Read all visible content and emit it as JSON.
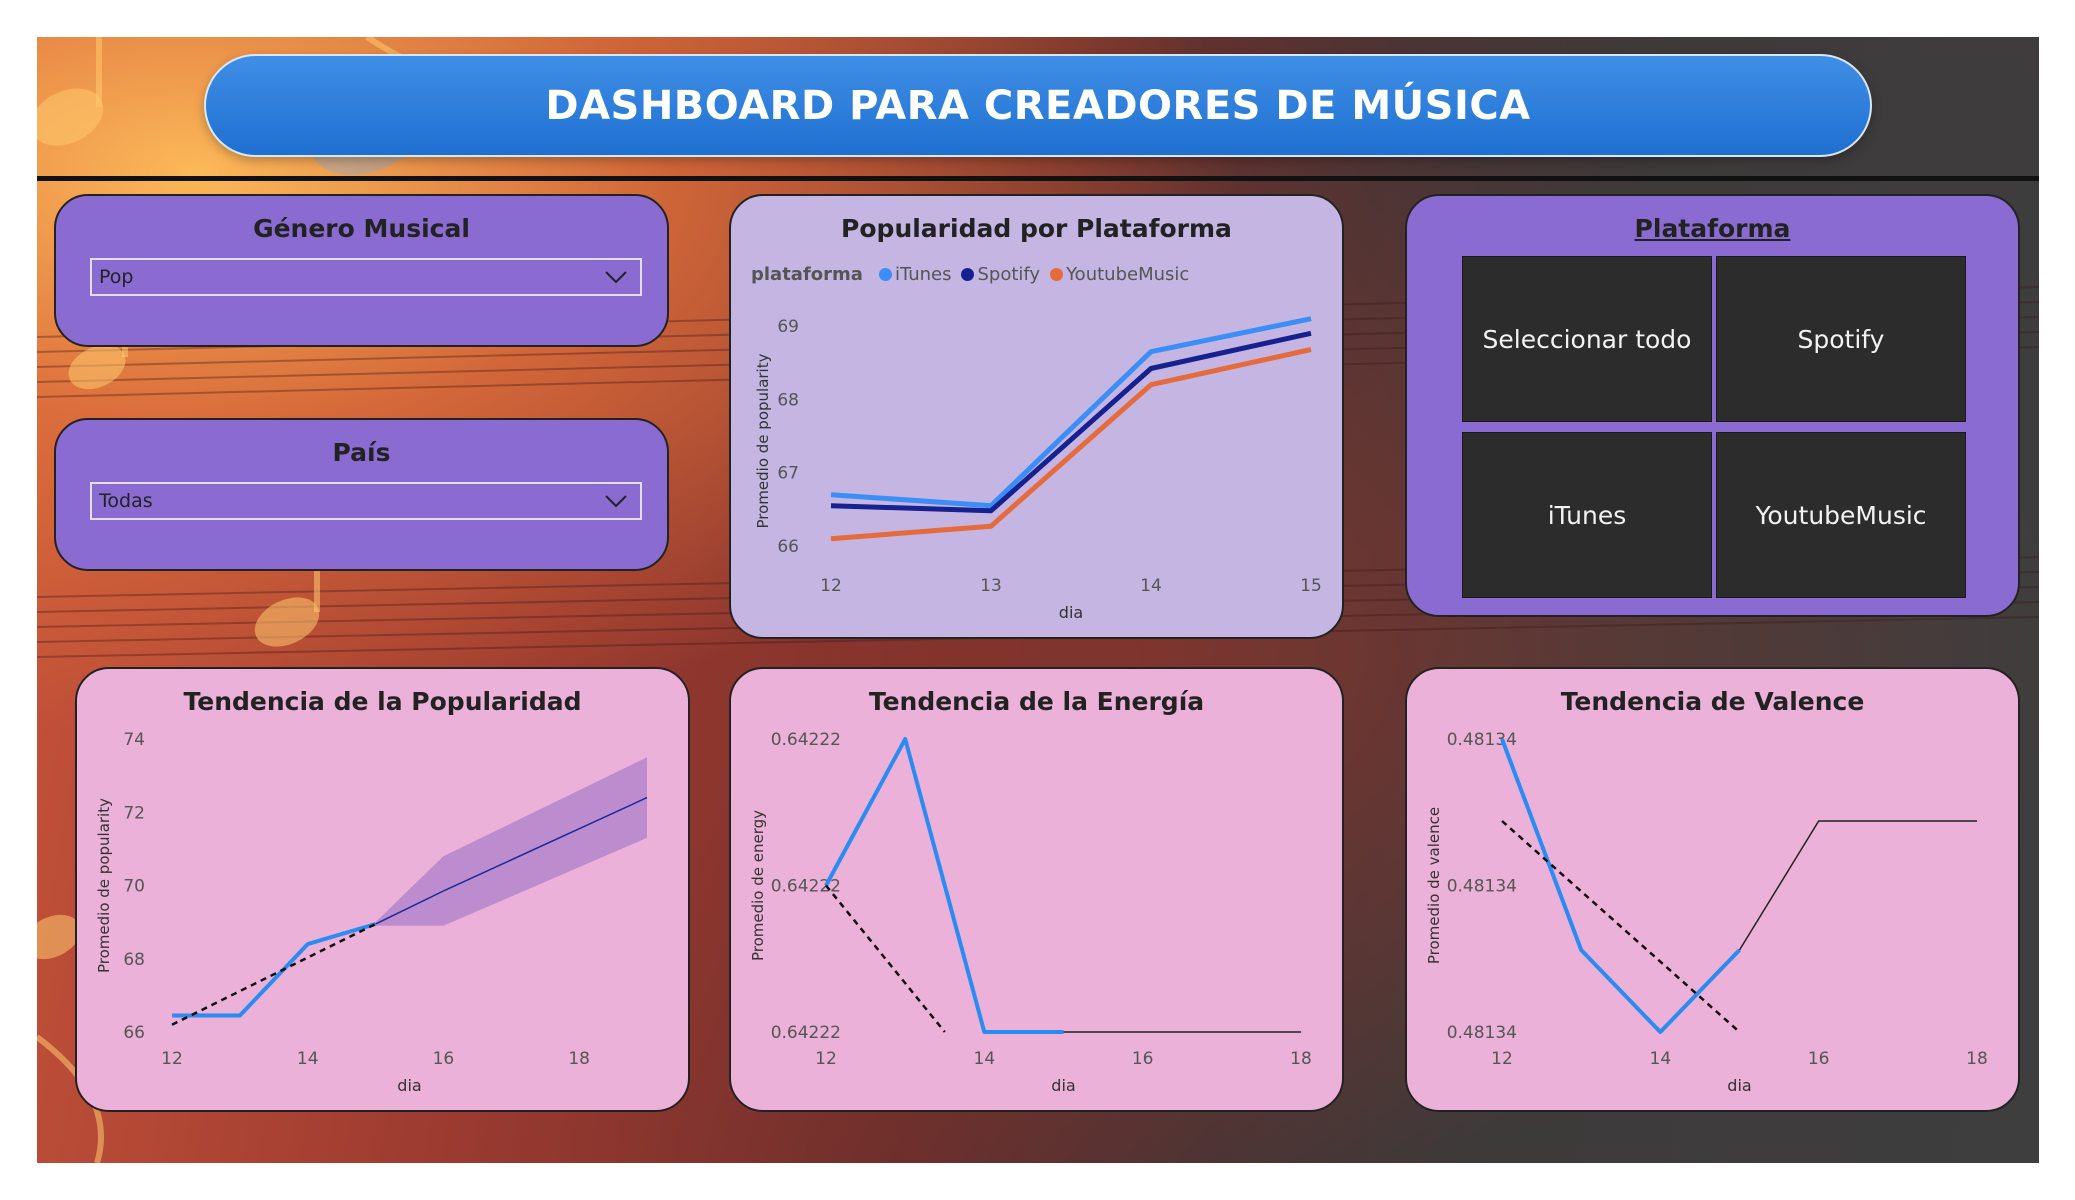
{
  "header": {
    "title": "DASHBOARD PARA CREADORES DE MÚSICA"
  },
  "genre": {
    "title": "Género Musical",
    "value": "Pop"
  },
  "country": {
    "title": "País",
    "value": "Todas"
  },
  "platform": {
    "title": "Plataforma",
    "options": [
      "Seleccionar todo",
      "Spotify",
      "iTunes",
      "YoutubeMusic"
    ]
  },
  "colors": {
    "itunes": "#3a8ef5",
    "spotify": "#16218f",
    "youtube": "#e56a3c",
    "trend": "#2a8cf0"
  },
  "chart_data": [
    {
      "type": "line",
      "title": "Popularidad por Plataforma",
      "legend_title": "plataforma",
      "xlabel": "dia",
      "ylabel": "Promedio de popularity",
      "x": [
        12,
        13,
        14,
        15
      ],
      "xticks": [
        12,
        13,
        14,
        15
      ],
      "yticks": [
        66,
        67,
        68,
        69
      ],
      "ylim": [
        65.75,
        69.25
      ],
      "series": [
        {
          "name": "iTunes",
          "values": [
            66.7,
            66.55,
            68.65,
            69.1
          ]
        },
        {
          "name": "Spotify",
          "values": [
            66.55,
            66.48,
            68.42,
            68.9
          ]
        },
        {
          "name": "YoutubeMusic",
          "values": [
            66.1,
            66.27,
            68.2,
            68.68
          ]
        }
      ]
    },
    {
      "type": "line",
      "title": "Tendencia de la Popularidad",
      "xlabel": "dia",
      "ylabel": "Promedio de popularity",
      "xticks": [
        12,
        14,
        16,
        18
      ],
      "yticks": [
        66,
        68,
        70,
        72,
        74
      ],
      "xlim": [
        12,
        19
      ],
      "ylim": [
        66,
        74
      ],
      "x": [
        12,
        13,
        14,
        15
      ],
      "values": [
        66.45,
        66.45,
        68.4,
        68.95
      ],
      "forecast": {
        "x": [
          15,
          16,
          19
        ],
        "values": [
          68.95,
          69.85,
          72.4
        ],
        "upper": [
          69.0,
          70.8,
          73.5
        ],
        "lower": [
          68.9,
          68.9,
          71.3
        ]
      },
      "trendline": {
        "x": [
          12,
          15
        ],
        "values": [
          66.2,
          68.95
        ]
      }
    },
    {
      "type": "line",
      "title": "Tendencia de la Energía",
      "xlabel": "dia",
      "ylabel": "Promedio de energy",
      "xticks": [
        12,
        14,
        16,
        18
      ],
      "yticks": [
        "0.64222",
        "0.64222",
        "0.64222"
      ],
      "xlim": [
        12,
        18
      ],
      "ylim": [
        0,
        1
      ],
      "x": [
        12,
        13,
        14,
        15
      ],
      "values": [
        0.5,
        1.0,
        0.0,
        0.0
      ],
      "forecast": {
        "x": [
          15,
          18
        ],
        "values": [
          0.0,
          0.0
        ]
      },
      "trendline": {
        "x": [
          12,
          13.5
        ],
        "values": [
          0.5,
          0.0
        ]
      }
    },
    {
      "type": "line",
      "title": "Tendencia de Valence",
      "xlabel": "dia",
      "ylabel": "Promedio de valence",
      "xticks": [
        12,
        14,
        16,
        18
      ],
      "yticks": [
        "0.48134",
        "0.48134",
        "0.48134"
      ],
      "xlim": [
        12,
        18
      ],
      "ylim": [
        0,
        1
      ],
      "x": [
        12,
        13,
        14,
        15
      ],
      "values": [
        1.0,
        0.28,
        0.0,
        0.28
      ],
      "forecast": {
        "x": [
          15,
          16,
          18
        ],
        "values": [
          0.28,
          0.72,
          0.72
        ]
      },
      "trendline": {
        "x": [
          12,
          15
        ],
        "values": [
          0.72,
          0.0
        ]
      }
    }
  ]
}
